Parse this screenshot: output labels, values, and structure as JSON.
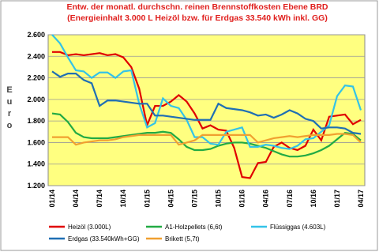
{
  "chart_data": {
    "type": "line",
    "title": "Entw. der monatl. durchschn. reinen Brennstoffkosten Ebene BRD",
    "subtitle": "(Energieinhalt 3.000 L Heizöl bzw. für Erdgas 33.540 kWh inkl. GG)",
    "y_label": "Euro",
    "categories": [
      "01/14",
      null,
      null,
      "04/14",
      null,
      null,
      "07/14",
      null,
      null,
      "10/14",
      null,
      null,
      "01/15",
      null,
      null,
      "04/15",
      null,
      null,
      "07/15",
      null,
      null,
      "10/15",
      null,
      null,
      "01/16",
      null,
      null,
      "04/16",
      null,
      null,
      "07/16",
      null,
      null,
      "10/16",
      null,
      null,
      "01/17",
      null,
      null,
      "04/17"
    ],
    "ylim": [
      1200,
      2600
    ],
    "yticks": [
      {
        "value": 1200,
        "label": "1.200"
      },
      {
        "value": 1400,
        "label": "1.400"
      },
      {
        "value": 1600,
        "label": "1.600"
      },
      {
        "value": 1800,
        "label": "1.800"
      },
      {
        "value": 2000,
        "label": "2.000"
      },
      {
        "value": 2200,
        "label": "2.200"
      },
      {
        "value": 2400,
        "label": "2.400"
      },
      {
        "value": 2600,
        "label": "2.600"
      }
    ],
    "grid": true,
    "series": [
      {
        "name": "Heizöl (3.000L)",
        "color": "#e00000",
        "values": [
          2440,
          2440,
          2410,
          2420,
          2410,
          2420,
          2430,
          2410,
          2420,
          2390,
          2300,
          2100,
          1760,
          1940,
          1940,
          1980,
          2040,
          1980,
          1870,
          1730,
          1760,
          1720,
          1710,
          1550,
          1280,
          1270,
          1410,
          1420,
          1560,
          1600,
          1550,
          1530,
          1570,
          1720,
          1620,
          1840,
          1850,
          1860,
          1770,
          1810
        ]
      },
      {
        "name": "A1-Holzpellets (6,6t)",
        "color": "#22aa44",
        "values": [
          1870,
          1860,
          1790,
          1690,
          1650,
          1640,
          1640,
          1640,
          1650,
          1660,
          1670,
          1680,
          1690,
          1690,
          1700,
          1690,
          1630,
          1560,
          1530,
          1530,
          1540,
          1570,
          1590,
          1600,
          1600,
          1590,
          1570,
          1550,
          1520,
          1490,
          1470,
          1470,
          1480,
          1500,
          1530,
          1570,
          1630,
          1690,
          1680,
          1620
        ]
      },
      {
        "name": "Flüssiggas (4.603L)",
        "color": "#33c3e8",
        "values": [
          2600,
          2520,
          2390,
          2270,
          2260,
          2200,
          2250,
          2250,
          2200,
          2260,
          2270,
          1960,
          1740,
          1780,
          2010,
          1940,
          1920,
          1810,
          1650,
          1650,
          1590,
          1580,
          1700,
          1720,
          1740,
          1560,
          1560,
          1580,
          1570,
          1550,
          1540,
          1570,
          1630,
          1640,
          1700,
          1760,
          2030,
          2130,
          2120,
          1900
        ]
      },
      {
        "name": "Erdgas (33.540kWh+GG)",
        "color": "#1f6fb4",
        "values": [
          2260,
          2210,
          2240,
          2240,
          2180,
          2150,
          1940,
          1990,
          1990,
          1980,
          1970,
          1960,
          1960,
          1850,
          1850,
          1840,
          1830,
          1820,
          1810,
          1810,
          1810,
          1960,
          1920,
          1910,
          1900,
          1880,
          1850,
          1860,
          1830,
          1860,
          1900,
          1870,
          1820,
          1800,
          1730,
          1740,
          1740,
          1730,
          1690,
          1680
        ]
      },
      {
        "name": "Brikett (5,7t)",
        "color": "#f0a030",
        "values": [
          1650,
          1650,
          1650,
          1580,
          1600,
          1610,
          1620,
          1620,
          1630,
          1650,
          1660,
          1670,
          1670,
          1670,
          1670,
          1670,
          1580,
          1600,
          1620,
          1670,
          1670,
          1670,
          1670,
          1670,
          1670,
          1670,
          1600,
          1620,
          1640,
          1650,
          1660,
          1650,
          1660,
          1670,
          1670,
          1670,
          1680,
          1680,
          1670,
          1600
        ]
      }
    ]
  }
}
